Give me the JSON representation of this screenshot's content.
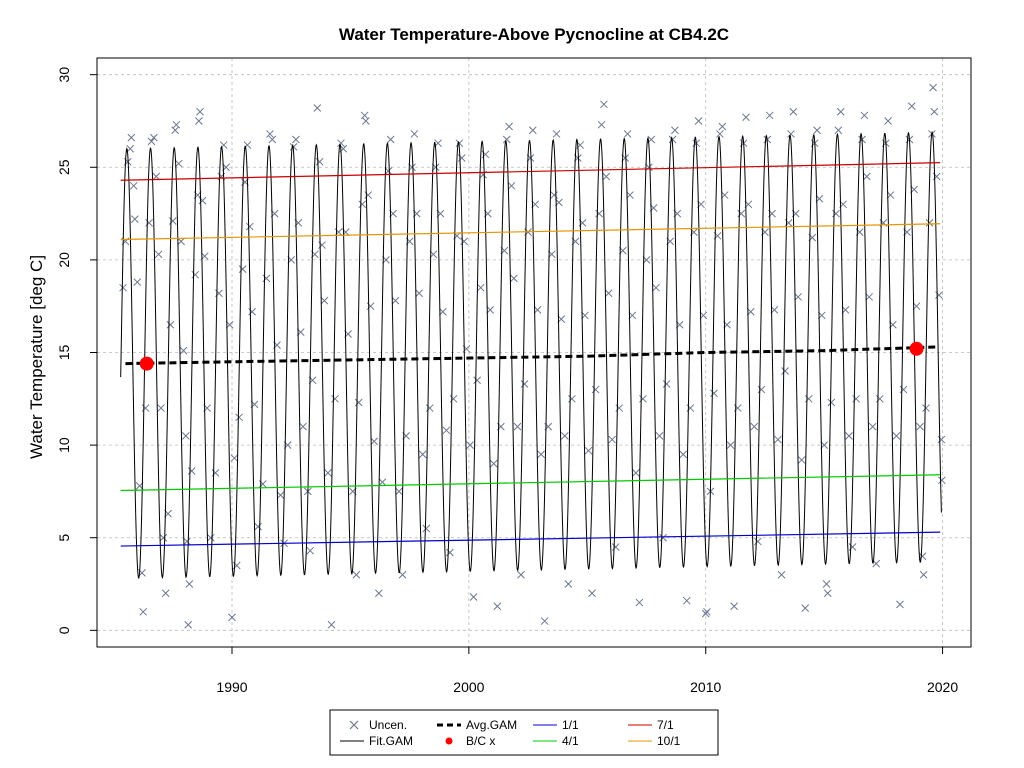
{
  "chart_data": {
    "type": "line",
    "title": "Water Temperature-Above Pycnocline at CB4.2C",
    "xlabel": "",
    "ylabel": "Water Temperature [deg C]",
    "xlim": [
      1984.3,
      2021.2
    ],
    "ylim": [
      -0.9,
      30.9
    ],
    "x_ticks": [
      1990,
      2000,
      2010,
      2020
    ],
    "y_ticks": [
      0,
      5,
      10,
      15,
      20,
      25,
      30
    ],
    "grid": true,
    "legend_position": "bottom",
    "colors": {
      "uncensored": "#6b7790",
      "fit_gam": "#000000",
      "avg_gam": "#000000",
      "bc": "#ff0000",
      "d1_1": "#0000cc",
      "d4_1": "#00cc00",
      "d7_1": "#cc0000",
      "d10_1": "#e69500",
      "grid": "#bbbbbb"
    },
    "fit_gam_model": {
      "x_start": 1985.3,
      "x_end": 2019.95,
      "mean_start": 14.4,
      "mean_end": 15.3,
      "amplitude": 11.6,
      "peak_phase": 0.56
    },
    "series": [
      {
        "name": "Avg.GAM",
        "x": [
          1985.5,
          1990,
          1995,
          2000,
          2005,
          2010,
          2015,
          2019.8
        ],
        "values": [
          14.4,
          14.5,
          14.6,
          14.7,
          14.8,
          15.0,
          15.1,
          15.3
        ]
      },
      {
        "name": "1/1",
        "x": [
          1985.3,
          2019.9
        ],
        "values": [
          4.55,
          5.3
        ]
      },
      {
        "name": "4/1",
        "x": [
          1985.3,
          2019.9
        ],
        "values": [
          7.55,
          8.4
        ]
      },
      {
        "name": "7/1",
        "x": [
          1985.3,
          2019.9
        ],
        "values": [
          24.3,
          25.25
        ]
      },
      {
        "name": "10/1",
        "x": [
          1985.3,
          2019.9
        ],
        "values": [
          21.1,
          21.95
        ]
      }
    ],
    "bc_points": [
      {
        "x": 1986.4,
        "y": 14.4
      },
      {
        "x": 2018.9,
        "y": 15.2
      }
    ],
    "uncensored": [
      [
        1985.4,
        18.5
      ],
      [
        1985.5,
        21.0
      ],
      [
        1985.6,
        25.3
      ],
      [
        1985.7,
        26.0
      ],
      [
        1985.75,
        26.6
      ],
      [
        1985.85,
        24.0
      ],
      [
        1985.9,
        22.2
      ],
      [
        1986.0,
        18.8
      ],
      [
        1986.1,
        7.8
      ],
      [
        1986.2,
        3.1
      ],
      [
        1986.25,
        1.0
      ],
      [
        1986.35,
        12.0
      ],
      [
        1986.5,
        22.0
      ],
      [
        1986.6,
        26.4
      ],
      [
        1986.7,
        26.6
      ],
      [
        1986.8,
        24.5
      ],
      [
        1986.9,
        20.3
      ],
      [
        1987.0,
        12.0
      ],
      [
        1987.1,
        5.0
      ],
      [
        1987.2,
        2.0
      ],
      [
        1987.3,
        6.3
      ],
      [
        1987.4,
        16.5
      ],
      [
        1987.5,
        22.1
      ],
      [
        1987.6,
        27.0
      ],
      [
        1987.65,
        27.3
      ],
      [
        1987.75,
        25.2
      ],
      [
        1987.85,
        21.0
      ],
      [
        1987.95,
        15.1
      ],
      [
        1988.05,
        10.5
      ],
      [
        1988.1,
        4.8
      ],
      [
        1988.15,
        0.3
      ],
      [
        1988.2,
        2.5
      ],
      [
        1988.3,
        8.6
      ],
      [
        1988.45,
        19.2
      ],
      [
        1988.55,
        23.5
      ],
      [
        1988.6,
        27.5
      ],
      [
        1988.65,
        28.0
      ],
      [
        1988.75,
        23.2
      ],
      [
        1988.85,
        20.2
      ],
      [
        1988.95,
        12.0
      ],
      [
        1989.1,
        5.0
      ],
      [
        1989.3,
        8.5
      ],
      [
        1989.45,
        18.2
      ],
      [
        1989.55,
        24.5
      ],
      [
        1989.65,
        26.2
      ],
      [
        1989.75,
        25.0
      ],
      [
        1989.9,
        16.5
      ],
      [
        1990.0,
        0.7
      ],
      [
        1990.1,
        9.3
      ],
      [
        1990.2,
        3.5
      ],
      [
        1990.3,
        11.5
      ],
      [
        1990.45,
        19.5
      ],
      [
        1990.55,
        24.2
      ],
      [
        1990.65,
        26.2
      ],
      [
        1990.75,
        21.8
      ],
      [
        1990.85,
        17.2
      ],
      [
        1990.95,
        12.2
      ],
      [
        1991.1,
        5.6
      ],
      [
        1991.3,
        7.9
      ],
      [
        1991.45,
        19.0
      ],
      [
        1991.6,
        26.8
      ],
      [
        1991.7,
        26.5
      ],
      [
        1991.8,
        22.5
      ],
      [
        1991.9,
        15.4
      ],
      [
        1992.05,
        7.3
      ],
      [
        1992.2,
        4.7
      ],
      [
        1992.35,
        10.0
      ],
      [
        1992.5,
        20.0
      ],
      [
        1992.6,
        26.1
      ],
      [
        1992.7,
        26.5
      ],
      [
        1992.8,
        22.0
      ],
      [
        1992.9,
        16.1
      ],
      [
        1993.0,
        11.0
      ],
      [
        1993.2,
        7.5
      ],
      [
        1993.3,
        4.3
      ],
      [
        1993.4,
        13.5
      ],
      [
        1993.5,
        20.3
      ],
      [
        1993.6,
        28.2
      ],
      [
        1993.7,
        25.3
      ],
      [
        1993.8,
        20.8
      ],
      [
        1993.9,
        17.8
      ],
      [
        1994.05,
        8.5
      ],
      [
        1994.2,
        0.3
      ],
      [
        1994.35,
        12.5
      ],
      [
        1994.5,
        21.5
      ],
      [
        1994.6,
        26.3
      ],
      [
        1994.7,
        26.0
      ],
      [
        1994.8,
        21.5
      ],
      [
        1994.9,
        16.0
      ],
      [
        1995.1,
        7.5
      ],
      [
        1995.25,
        3.0
      ],
      [
        1995.35,
        12.3
      ],
      [
        1995.5,
        23.0
      ],
      [
        1995.6,
        27.8
      ],
      [
        1995.65,
        27.5
      ],
      [
        1995.75,
        23.5
      ],
      [
        1995.85,
        17.5
      ],
      [
        1996.0,
        10.2
      ],
      [
        1996.2,
        2.0
      ],
      [
        1996.35,
        8.0
      ],
      [
        1996.5,
        20.0
      ],
      [
        1996.6,
        24.8
      ],
      [
        1996.7,
        26.5
      ],
      [
        1996.8,
        22.5
      ],
      [
        1996.9,
        17.8
      ],
      [
        1997.05,
        7.5
      ],
      [
        1997.2,
        3.0
      ],
      [
        1997.35,
        10.5
      ],
      [
        1997.5,
        21.0
      ],
      [
        1997.6,
        25.0
      ],
      [
        1997.7,
        26.8
      ],
      [
        1997.8,
        22.5
      ],
      [
        1997.9,
        18.2
      ],
      [
        1998.05,
        9.5
      ],
      [
        1998.2,
        5.5
      ],
      [
        1998.35,
        12.0
      ],
      [
        1998.5,
        20.3
      ],
      [
        1998.6,
        25.0
      ],
      [
        1998.7,
        26.3
      ],
      [
        1998.8,
        22.5
      ],
      [
        1998.9,
        17.2
      ],
      [
        1999.05,
        10.8
      ],
      [
        1999.2,
        4.2
      ],
      [
        1999.35,
        12.5
      ],
      [
        1999.5,
        21.3
      ],
      [
        1999.6,
        26.3
      ],
      [
        1999.7,
        25.5
      ],
      [
        1999.8,
        21.0
      ],
      [
        1999.9,
        15.2
      ],
      [
        2000.05,
        10.0
      ],
      [
        2000.2,
        1.8
      ],
      [
        2000.35,
        13.5
      ],
      [
        2000.5,
        18.5
      ],
      [
        2000.6,
        24.6
      ],
      [
        2000.7,
        25.7
      ],
      [
        2000.8,
        22.5
      ],
      [
        2000.9,
        17.3
      ],
      [
        2001.05,
        9.0
      ],
      [
        2001.2,
        1.3
      ],
      [
        2001.35,
        11.0
      ],
      [
        2001.5,
        20.5
      ],
      [
        2001.6,
        26.5
      ],
      [
        2001.7,
        27.2
      ],
      [
        2001.8,
        24.0
      ],
      [
        2001.9,
        19.0
      ],
      [
        2002.05,
        11.0
      ],
      [
        2002.2,
        3.0
      ],
      [
        2002.35,
        13.3
      ],
      [
        2002.5,
        21.5
      ],
      [
        2002.6,
        25.5
      ],
      [
        2002.7,
        27.0
      ],
      [
        2002.8,
        23.0
      ],
      [
        2002.9,
        17.3
      ],
      [
        2003.05,
        9.5
      ],
      [
        2003.2,
        0.5
      ],
      [
        2003.35,
        11.0
      ],
      [
        2003.5,
        20.3
      ],
      [
        2003.6,
        23.5
      ],
      [
        2003.7,
        26.8
      ],
      [
        2003.8,
        23.1
      ],
      [
        2003.9,
        16.8
      ],
      [
        2004.05,
        10.5
      ],
      [
        2004.2,
        2.5
      ],
      [
        2004.35,
        12.5
      ],
      [
        2004.5,
        21.0
      ],
      [
        2004.6,
        25.5
      ],
      [
        2004.7,
        26.2
      ],
      [
        2004.8,
        22.0
      ],
      [
        2004.9,
        17.0
      ],
      [
        2005.05,
        9.7
      ],
      [
        2005.2,
        2.0
      ],
      [
        2005.35,
        13.0
      ],
      [
        2005.5,
        22.5
      ],
      [
        2005.6,
        27.3
      ],
      [
        2005.7,
        28.4
      ],
      [
        2005.8,
        24.5
      ],
      [
        2005.9,
        18.2
      ],
      [
        2006.05,
        10.3
      ],
      [
        2006.2,
        4.5
      ],
      [
        2006.35,
        12.0
      ],
      [
        2006.5,
        20.5
      ],
      [
        2006.6,
        25.5
      ],
      [
        2006.7,
        26.8
      ],
      [
        2006.8,
        23.5
      ],
      [
        2006.9,
        17.0
      ],
      [
        2007.05,
        8.5
      ],
      [
        2007.2,
        1.5
      ],
      [
        2007.35,
        12.5
      ],
      [
        2007.5,
        20.0
      ],
      [
        2007.6,
        25.0
      ],
      [
        2007.7,
        26.5
      ],
      [
        2007.8,
        22.8
      ],
      [
        2007.9,
        18.5
      ],
      [
        2008.05,
        10.5
      ],
      [
        2008.2,
        5.0
      ],
      [
        2008.35,
        13.3
      ],
      [
        2008.5,
        21.0
      ],
      [
        2008.6,
        26.5
      ],
      [
        2008.7,
        27.0
      ],
      [
        2008.8,
        22.5
      ],
      [
        2008.9,
        16.5
      ],
      [
        2009.05,
        9.5
      ],
      [
        2009.2,
        1.6
      ],
      [
        2009.35,
        12.0
      ],
      [
        2009.5,
        21.5
      ],
      [
        2009.6,
        26.3
      ],
      [
        2009.7,
        27.5
      ],
      [
        2009.8,
        23.0
      ],
      [
        2009.9,
        17.0
      ],
      [
        2010.0,
        0.9
      ],
      [
        2010.05,
        1.0
      ],
      [
        2010.2,
        7.5
      ],
      [
        2010.35,
        12.8
      ],
      [
        2010.5,
        21.3
      ],
      [
        2010.6,
        26.8
      ],
      [
        2010.7,
        27.2
      ],
      [
        2010.8,
        23.5
      ],
      [
        2010.9,
        16.5
      ],
      [
        2011.05,
        10.0
      ],
      [
        2011.2,
        1.3
      ],
      [
        2011.35,
        12.0
      ],
      [
        2011.5,
        22.5
      ],
      [
        2011.6,
        26.3
      ],
      [
        2011.7,
        27.7
      ],
      [
        2011.8,
        23.0
      ],
      [
        2011.9,
        17.2
      ],
      [
        2012.05,
        11.0
      ],
      [
        2012.2,
        4.8
      ],
      [
        2012.35,
        13.0
      ],
      [
        2012.5,
        21.5
      ],
      [
        2012.6,
        26.5
      ],
      [
        2012.7,
        27.8
      ],
      [
        2012.8,
        22.5
      ],
      [
        2012.9,
        17.3
      ],
      [
        2013.05,
        10.3
      ],
      [
        2013.2,
        3.0
      ],
      [
        2013.35,
        14.0
      ],
      [
        2013.5,
        22.0
      ],
      [
        2013.6,
        26.8
      ],
      [
        2013.7,
        28.0
      ],
      [
        2013.8,
        22.5
      ],
      [
        2013.9,
        18.0
      ],
      [
        2014.05,
        9.2
      ],
      [
        2014.2,
        1.2
      ],
      [
        2014.35,
        12.5
      ],
      [
        2014.5,
        21.2
      ],
      [
        2014.6,
        26.3
      ],
      [
        2014.7,
        27.0
      ],
      [
        2014.8,
        23.3
      ],
      [
        2014.9,
        17.0
      ],
      [
        2015.0,
        10.0
      ],
      [
        2015.1,
        2.5
      ],
      [
        2015.15,
        2.0
      ],
      [
        2015.3,
        12.3
      ],
      [
        2015.5,
        22.5
      ],
      [
        2015.6,
        27.0
      ],
      [
        2015.7,
        28.0
      ],
      [
        2015.8,
        23.0
      ],
      [
        2015.9,
        17.3
      ],
      [
        2016.05,
        10.5
      ],
      [
        2016.2,
        4.5
      ],
      [
        2016.35,
        12.5
      ],
      [
        2016.5,
        21.5
      ],
      [
        2016.6,
        26.5
      ],
      [
        2016.7,
        27.8
      ],
      [
        2016.8,
        24.5
      ],
      [
        2016.9,
        18.0
      ],
      [
        2017.05,
        11.0
      ],
      [
        2017.2,
        3.6
      ],
      [
        2017.35,
        12.5
      ],
      [
        2017.5,
        22.0
      ],
      [
        2017.6,
        26.3
      ],
      [
        2017.7,
        27.5
      ],
      [
        2017.8,
        23.5
      ],
      [
        2017.9,
        16.5
      ],
      [
        2018.05,
        10.5
      ],
      [
        2018.2,
        1.4
      ],
      [
        2018.35,
        13.0
      ],
      [
        2018.5,
        21.5
      ],
      [
        2018.6,
        26.5
      ],
      [
        2018.7,
        28.3
      ],
      [
        2018.8,
        23.8
      ],
      [
        2018.9,
        17.5
      ],
      [
        2019.05,
        11.0
      ],
      [
        2019.15,
        4.0
      ],
      [
        2019.2,
        3.0
      ],
      [
        2019.3,
        12.0
      ],
      [
        2019.45,
        22.0
      ],
      [
        2019.55,
        26.8
      ],
      [
        2019.6,
        29.3
      ],
      [
        2019.65,
        28.0
      ],
      [
        2019.75,
        24.5
      ],
      [
        2019.85,
        18.1
      ],
      [
        2019.95,
        10.3
      ],
      [
        2019.97,
        8.1
      ]
    ]
  },
  "legend": {
    "items": [
      {
        "label": "Uncen.",
        "symbol": "cross"
      },
      {
        "label": "Fit.GAM",
        "symbol": "line-thin"
      },
      {
        "label": "Avg.GAM",
        "symbol": "line-dashed"
      },
      {
        "label": "B/C x",
        "symbol": "dot-red"
      },
      {
        "label": "1/1",
        "symbol": "line-blue"
      },
      {
        "label": "4/1",
        "symbol": "line-green"
      },
      {
        "label": "7/1",
        "symbol": "line-red"
      },
      {
        "label": "10/1",
        "symbol": "line-orange"
      }
    ]
  }
}
